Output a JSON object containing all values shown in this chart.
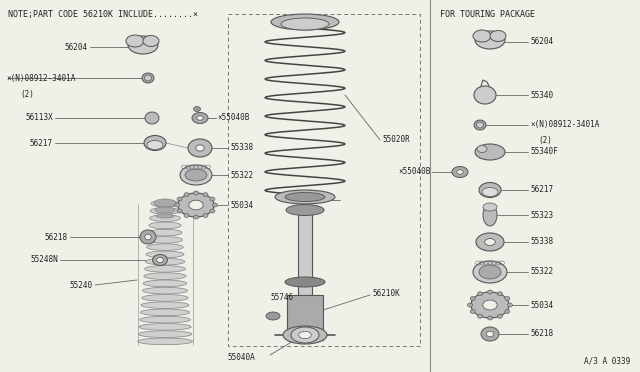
{
  "title": "NOTE;PART CODE 56210K INCLUDE........×",
  "title2": "FOR TOURING PACKAGE",
  "bg_color": "#f0f0e8",
  "border_color": "#333333",
  "line_color": "#555555",
  "diagram_note": "A/3 A 0339",
  "figsize": [
    6.4,
    3.72
  ],
  "dpi": 100
}
